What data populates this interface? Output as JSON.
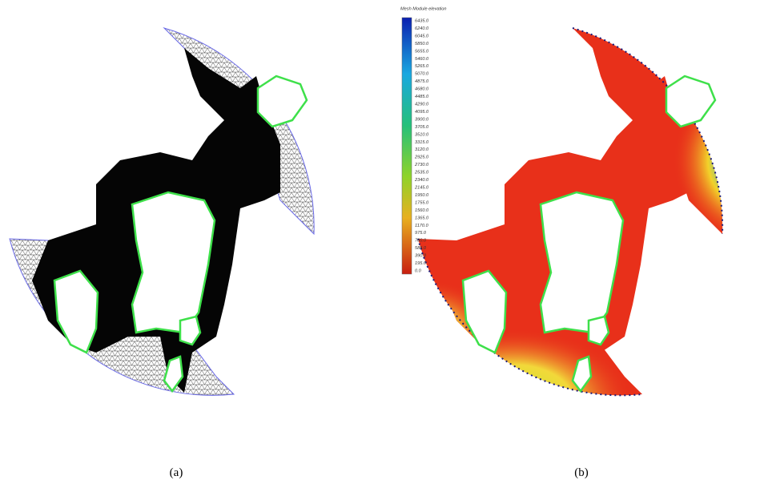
{
  "panels": [
    {
      "caption": "(a)"
    },
    {
      "caption": "(b)",
      "legend": {
        "title": "Mesh Module elevation",
        "labels": [
          "6435.0",
          "6240.0",
          "6045.0",
          "5850.0",
          "5655.0",
          "5460.0",
          "5265.0",
          "5070.0",
          "4875.0",
          "4680.0",
          "4485.0",
          "4290.0",
          "4095.0",
          "3900.0",
          "3705.0",
          "3510.0",
          "3315.0",
          "3120.0",
          "2925.0",
          "2730.0",
          "2535.0",
          "2340.0",
          "2145.0",
          "1950.0",
          "1755.0",
          "1560.0",
          "1365.0",
          "1170.0",
          "975.0",
          "780.0",
          "585.0",
          "390.0",
          "195.0",
          "0.0"
        ]
      }
    }
  ]
}
